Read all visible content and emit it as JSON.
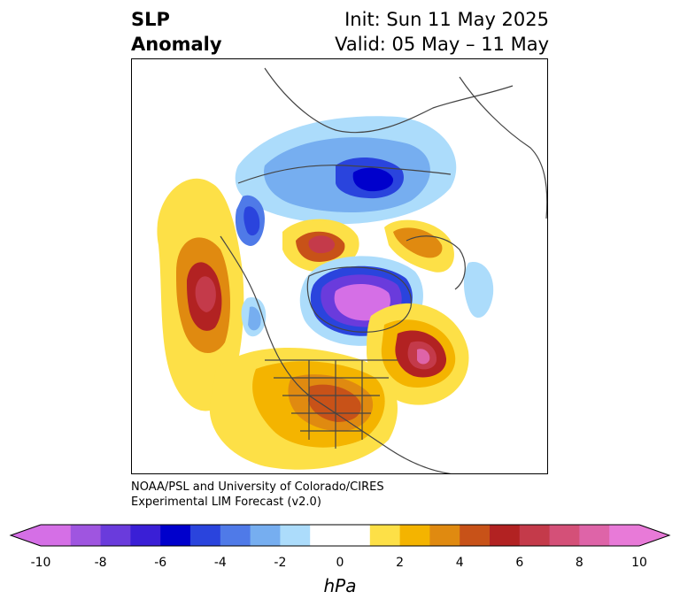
{
  "header": {
    "title_line1": "SLP",
    "title_line2": "Anomaly",
    "init": "Init: Sun 11 May 2025",
    "valid": "Valid: 05 May – 11 May"
  },
  "credit": {
    "line1": "NOAA/PSL and University of Colorado/CIRES",
    "line2": "Experimental LIM Forecast (v2.0)"
  },
  "colorbar": {
    "unit": "hPa",
    "ticks": [
      "-10",
      "-8",
      "-6",
      "-4",
      "-2",
      "0",
      "2",
      "4",
      "6",
      "8",
      "10"
    ],
    "colors": [
      "#d56fe6",
      "#9f55e0",
      "#6a3bdc",
      "#3a1fd6",
      "#0000cc",
      "#2a44dd",
      "#4f7ae8",
      "#76aef0",
      "#acdcfb",
      "#ffffff",
      "#ffffff",
      "#fde047",
      "#f4b400",
      "#e08a10",
      "#c85218",
      "#b22222",
      "#c43a4a",
      "#d45078",
      "#de64a8",
      "#e87ad8"
    ],
    "extend_low": "#d56fe6",
    "extend_high": "#e87ad8"
  },
  "map": {
    "projection": "north-polar-stereographic",
    "variable": "sea-level-pressure-anomaly",
    "features": [
      {
        "name": "arctic-low",
        "sign": "negative",
        "peak_hPa": -10
      },
      {
        "name": "siberia-low",
        "sign": "negative",
        "peak_hPa": -6
      },
      {
        "name": "bering-high",
        "sign": "positive",
        "peak_hPa": 8
      },
      {
        "name": "alaska-high",
        "sign": "positive",
        "peak_hPa": 7
      },
      {
        "name": "scandinavia-high",
        "sign": "positive",
        "peak_hPa": 6
      },
      {
        "name": "north-atlantic-high",
        "sign": "positive",
        "peak_hPa": 8
      },
      {
        "name": "north-america-high",
        "sign": "positive",
        "peak_hPa": 5
      }
    ]
  }
}
